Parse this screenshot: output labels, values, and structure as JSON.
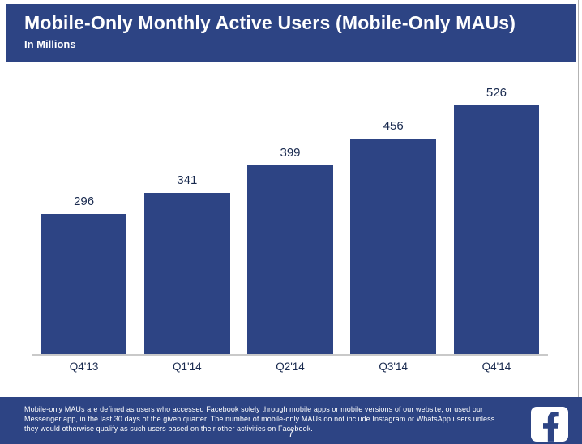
{
  "slide": {
    "title": "Mobile-Only Monthly Active Users (Mobile-Only MAUs)",
    "subtitle": "In Millions",
    "page_number": "7",
    "footnote": "Mobile-only MAUs are defined as users who accessed Facebook solely through mobile apps or mobile versions of our website, or used our Messenger app, in the last 30 days of the given quarter. The number of mobile-only MAUs do not include Instagram or WhatsApp users unless they would otherwise qualify as such users based on their other activities on Facebook.",
    "logo": "facebook-logo"
  },
  "colors": {
    "brand_blue": "#2d4484",
    "bar_blue": "#2d4484",
    "label_text": "#18294e",
    "axis_line": "#c9c9c9",
    "background": "#ffffff"
  },
  "chart_data": {
    "type": "bar",
    "categories": [
      "Q4'13",
      "Q1'14",
      "Q2'14",
      "Q3'14",
      "Q4'14"
    ],
    "values": [
      296,
      341,
      399,
      456,
      526
    ],
    "title": "Mobile-Only Monthly Active Users (Mobile-Only MAUs)",
    "subtitle": "In Millions",
    "xlabel": "",
    "ylabel": "In Millions",
    "ylim": [
      0,
      560
    ],
    "grid": false,
    "legend": "none",
    "data_labels": true
  }
}
